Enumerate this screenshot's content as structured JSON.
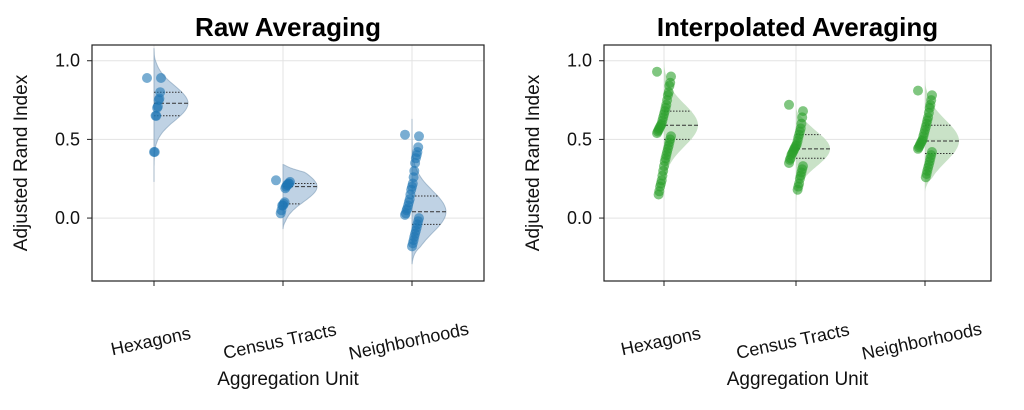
{
  "chart_data": [
    {
      "type": "raincloud",
      "title": "Raw Averaging",
      "xlabel": "Aggregation Unit",
      "ylabel": "Adjusted Rand Index",
      "categories": [
        "Hexagons",
        "Census Tracts",
        "Neighborhoods"
      ],
      "ylim": [
        -0.4,
        1.1
      ],
      "yticks": [
        0.0,
        0.5,
        1.0
      ],
      "ytick_labels": [
        "0.0",
        "0.5",
        "1.0"
      ],
      "grid": true,
      "color": "#1f77b4",
      "fill": "#a9c3db",
      "groups": [
        {
          "category": "Hexagons",
          "points": [
            0.89,
            0.89,
            0.8,
            0.76,
            0.75,
            0.71,
            0.7,
            0.65,
            0.65,
            0.42,
            0.42
          ],
          "quartiles": [
            0.65,
            0.73,
            0.8
          ],
          "violin_range": [
            0.23,
            1.08
          ]
        },
        {
          "category": "Census Tracts",
          "points": [
            0.24,
            0.23,
            0.22,
            0.22,
            0.21,
            0.21,
            0.2,
            0.19,
            0.1,
            0.09,
            0.08,
            0.08,
            0.05,
            0.03
          ],
          "quartiles": [
            0.09,
            0.2,
            0.22
          ],
          "violin_range": [
            -0.07,
            0.34
          ]
        },
        {
          "category": "Neighborhoods",
          "points": [
            0.53,
            0.52,
            0.45,
            0.42,
            0.4,
            0.38,
            0.35,
            0.3,
            0.26,
            0.22,
            0.2,
            0.18,
            0.15,
            0.12,
            0.1,
            0.08,
            0.06,
            0.05,
            0.03,
            0.02,
            0.0,
            -0.02,
            -0.04,
            -0.06,
            -0.08,
            -0.1,
            -0.12,
            -0.14,
            -0.16,
            -0.18
          ],
          "quartiles": [
            -0.04,
            0.04,
            0.14
          ],
          "violin_range": [
            -0.29,
            0.63
          ]
        }
      ]
    },
    {
      "type": "raincloud",
      "title": "Interpolated Averaging",
      "xlabel": "Aggregation Unit",
      "ylabel": "Adjusted Rand Index",
      "categories": [
        "Hexagons",
        "Census Tracts",
        "Neighborhoods"
      ],
      "ylim": [
        -0.4,
        1.1
      ],
      "yticks": [
        0.0,
        0.5,
        1.0
      ],
      "ytick_labels": [
        "0.0",
        "0.5",
        "1.0"
      ],
      "grid": true,
      "color": "#2ca02c",
      "fill": "#b7d8b4",
      "groups": [
        {
          "category": "Hexagons",
          "points": [
            0.93,
            0.9,
            0.86,
            0.84,
            0.8,
            0.78,
            0.75,
            0.72,
            0.7,
            0.68,
            0.66,
            0.64,
            0.62,
            0.6,
            0.59,
            0.58,
            0.57,
            0.56,
            0.55,
            0.54,
            0.52,
            0.5,
            0.48,
            0.46,
            0.44,
            0.42,
            0.4,
            0.38,
            0.36,
            0.33,
            0.3,
            0.27,
            0.24,
            0.22,
            0.2,
            0.17,
            0.15
          ],
          "quartiles": [
            0.5,
            0.59,
            0.68
          ],
          "violin_range": [
            0.04,
            1.03
          ]
        },
        {
          "category": "Census Tracts",
          "points": [
            0.72,
            0.68,
            0.64,
            0.6,
            0.57,
            0.55,
            0.53,
            0.51,
            0.49,
            0.47,
            0.46,
            0.45,
            0.44,
            0.43,
            0.42,
            0.41,
            0.4,
            0.38,
            0.37,
            0.35,
            0.33,
            0.31,
            0.29,
            0.27,
            0.25,
            0.22,
            0.2,
            0.18
          ],
          "quartiles": [
            0.38,
            0.44,
            0.53
          ],
          "violin_range": [
            0.1,
            0.7
          ]
        },
        {
          "category": "Neighborhoods",
          "points": [
            0.81,
            0.78,
            0.75,
            0.72,
            0.7,
            0.67,
            0.64,
            0.62,
            0.6,
            0.58,
            0.56,
            0.54,
            0.52,
            0.5,
            0.49,
            0.48,
            0.47,
            0.46,
            0.45,
            0.44,
            0.42,
            0.4,
            0.38,
            0.36,
            0.34,
            0.32,
            0.3,
            0.28,
            0.26
          ],
          "quartiles": [
            0.41,
            0.49,
            0.59
          ],
          "violin_range": [
            0.17,
            0.89
          ]
        }
      ]
    }
  ]
}
